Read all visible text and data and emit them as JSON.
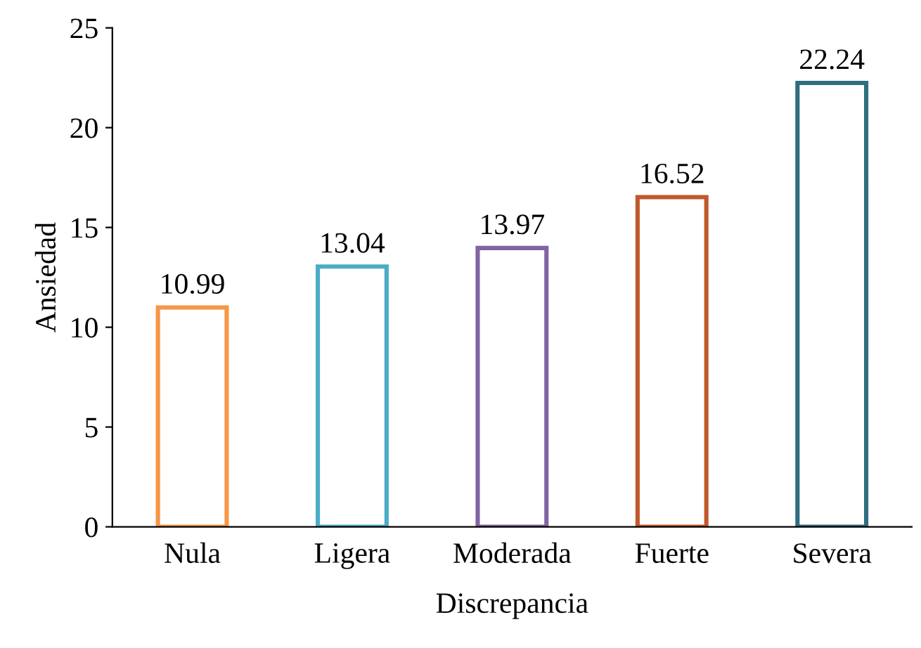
{
  "chart_data": {
    "type": "bar",
    "xlabel": "Discrepancia",
    "ylabel": "Ansiedad",
    "categories": [
      "Nula",
      "Ligera",
      "Moderada",
      "Fuerte",
      "Severa"
    ],
    "values": [
      10.99,
      13.04,
      13.97,
      16.52,
      22.24
    ],
    "colors": [
      "#f79646",
      "#4bacc6",
      "#8064a2",
      "#c0582b",
      "#2e6e80"
    ],
    "ylim": [
      0,
      25
    ],
    "yticks": [
      0,
      5,
      10,
      15,
      20,
      25
    ],
    "grid": false,
    "data_labels": true
  }
}
